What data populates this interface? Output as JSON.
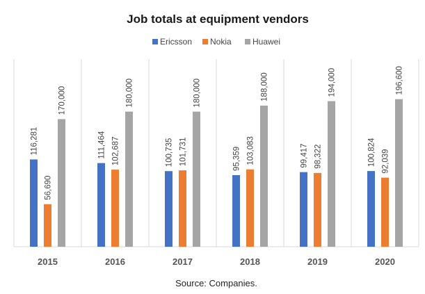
{
  "chart_data": {
    "type": "bar",
    "title": "Job totals at equipment vendors",
    "categories": [
      "2015",
      "2016",
      "2017",
      "2018",
      "2019",
      "2020"
    ],
    "series": [
      {
        "name": "Ericsson",
        "color": "#4472c4",
        "values": [
          116281,
          111464,
          100735,
          95359,
          99417,
          100824
        ],
        "labels": [
          "116,281",
          "111,464",
          "100,735",
          "95,359",
          "99,417",
          "100,824"
        ]
      },
      {
        "name": "Nokia",
        "color": "#ed7d31",
        "values": [
          56690,
          102687,
          101731,
          103083,
          98322,
          92039
        ],
        "labels": [
          "56,690",
          "102,687",
          "101,731",
          "103,083",
          "98,322",
          "92,039"
        ]
      },
      {
        "name": "Huawei",
        "color": "#a5a5a5",
        "values": [
          170000,
          180000,
          180000,
          188000,
          194000,
          196600
        ],
        "labels": [
          "170,000",
          "180,000",
          "180,000",
          "188,000",
          "194,000",
          "196,600"
        ]
      }
    ],
    "ylim": [
      0,
      250000
    ],
    "xlabel": "",
    "ylabel": "",
    "legend_position": "top-center",
    "source": "Source: Companies."
  }
}
